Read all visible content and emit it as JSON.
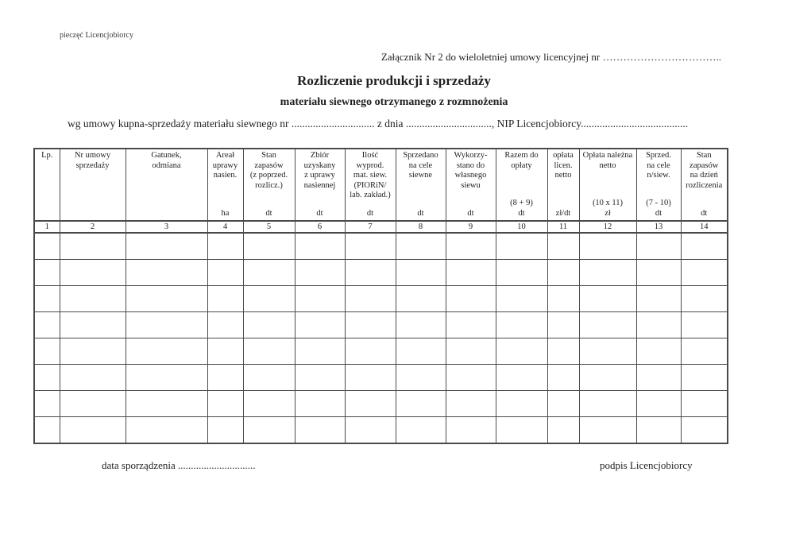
{
  "page": {
    "stamp_label": "pieczęć Licencjobiorcy",
    "attachment_line": "Załącznik Nr 2 do wieloletniej umowy licencyjnej nr ……………………………..",
    "title": "Rozliczenie produkcji i sprzedaży",
    "subtitle": "materiału siewnego otrzymanego z rozmnożenia",
    "agreement_line": "wg umowy kupna-sprzedaży materiału siewnego nr ............................... z dnia ................................, NIP Licencjobiorcy........................................",
    "footer": {
      "date_label": "data sporządzenia ..............................",
      "signature_label": "podpis Licencjobiorcy"
    }
  },
  "table": {
    "empty_row_count": 8,
    "columns": [
      {
        "num": "1",
        "label": "Lp.",
        "bottom": ""
      },
      {
        "num": "2",
        "label": "Nr umowy\nsprzedaży",
        "bottom": ""
      },
      {
        "num": "3",
        "label": "Gatunek,\nodmiana",
        "bottom": ""
      },
      {
        "num": "4",
        "label": "Areał\nuprawy\nnasien.",
        "bottom": "ha"
      },
      {
        "num": "5",
        "label": "Stan\nzapasów\n(z poprzed.\nrozlicz.)",
        "bottom": "dt"
      },
      {
        "num": "6",
        "label": "Zbiór\nuzyskany\nz uprawy\nnasiennej",
        "bottom": "dt"
      },
      {
        "num": "7",
        "label": "Ilość\nwyprod.\nmat. siew.\n(PIORiN/\nlab. zakład.)",
        "bottom": "dt"
      },
      {
        "num": "8",
        "label": "Sprzedano\nna cele\nsiewne",
        "bottom": "dt"
      },
      {
        "num": "9",
        "label": "Wykorzy-\nstano do\nwłasnego\nsiewu",
        "bottom": "dt"
      },
      {
        "num": "10",
        "label": "Razem do\nopłaty",
        "bottom": "(8 + 9)\ndt"
      },
      {
        "num": "11",
        "label": "opłata\nlicen.\nnetto",
        "bottom": "zł/dt"
      },
      {
        "num": "12",
        "label": "Opłata należna\nnetto",
        "bottom": "(10 x 11)\nzł"
      },
      {
        "num": "13",
        "label": "Sprzed.\nna cele\nn/siew.",
        "bottom": "(7 - 10)\ndt"
      },
      {
        "num": "14",
        "label": "Stan\nzapasów\nna dzień\nrozliczenia",
        "bottom": "dt"
      }
    ]
  }
}
